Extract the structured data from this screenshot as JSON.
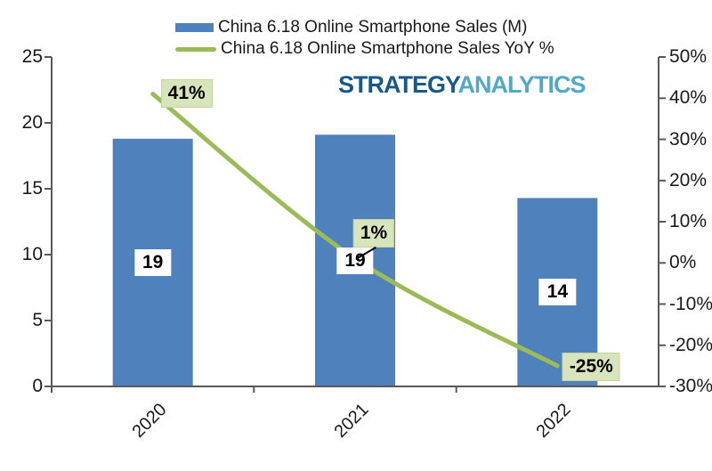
{
  "logo": {
    "part1": "STRATEGY",
    "part2": "ANALYTICS",
    "part1_color": "#19588A",
    "part2_color": "#54A8C6"
  },
  "legend": {
    "position": "top-center",
    "items": [
      {
        "label": "China 6.18 Online Smartphone Sales (M)",
        "marker": "bar-swatch",
        "color": "#4F81BD"
      },
      {
        "label": "China 6.18 Online Smartphone Sales YoY %",
        "marker": "line-swatch",
        "color": "#9BBB59"
      }
    ]
  },
  "chart_data": {
    "type": "bar",
    "subtype": "combo-bar-line-dual-axis",
    "categories": [
      "2020",
      "2021",
      "2022"
    ],
    "series": [
      {
        "name": "China 6.18 Online Smartphone Sales (M)",
        "chart": "bar",
        "axis": "left",
        "values": [
          18.8,
          19.1,
          14.3
        ],
        "data_labels": [
          "19",
          "19",
          "14"
        ],
        "color": "#4F81BD",
        "label_bg": "#FFFFFF"
      },
      {
        "name": "China 6.18 Online Smartphone Sales YoY %",
        "chart": "line",
        "axis": "right",
        "values": [
          41,
          1,
          -25
        ],
        "data_labels": [
          "41%",
          "1%",
          "-25%"
        ],
        "color": "#9BBB59",
        "label_bg": "#D8E4BC",
        "label_border": "#C2D69B",
        "smoothed": true
      }
    ],
    "left_axis": {
      "min": 0,
      "max": 25,
      "ticks": [
        {
          "value": 0,
          "label": "0"
        },
        {
          "value": 5,
          "label": "5"
        },
        {
          "value": 10,
          "label": "10"
        },
        {
          "value": 15,
          "label": "15"
        },
        {
          "value": 20,
          "label": "20"
        },
        {
          "value": 25,
          "label": "25"
        }
      ]
    },
    "right_axis": {
      "min": -30,
      "max": 50,
      "ticks": [
        {
          "value": 50,
          "label": "50%"
        },
        {
          "value": 40,
          "label": "40%"
        },
        {
          "value": 30,
          "label": "30%"
        },
        {
          "value": 20,
          "label": "20%"
        },
        {
          "value": 10,
          "label": "10%"
        },
        {
          "value": 0,
          "label": "0%"
        },
        {
          "value": -10,
          "label": "-10%"
        },
        {
          "value": -20,
          "label": "-20%"
        },
        {
          "value": -30,
          "label": "-30%"
        }
      ]
    },
    "grid": false,
    "legend_position": "top-center",
    "axis_color": "#595959",
    "text_color": "#1a1a1a"
  }
}
